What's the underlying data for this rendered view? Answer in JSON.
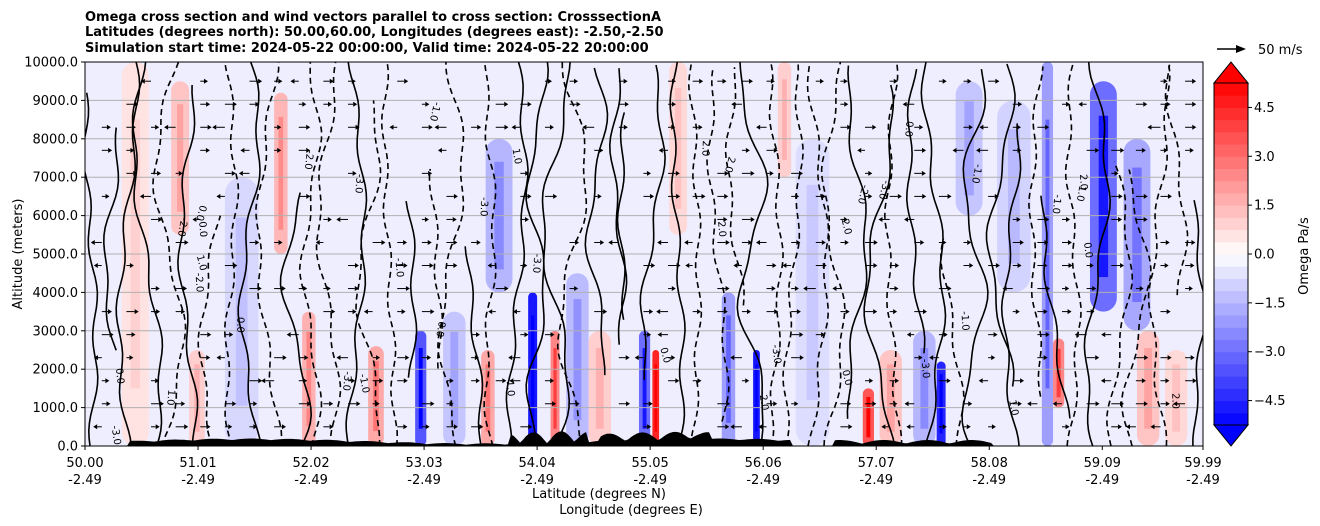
{
  "chart_data": {
    "type": "heatmap",
    "title_lines": [
      "Omega cross section and wind vectors parallel to cross section: CrosssectionA",
      "Latitudes (degrees north): 50.00,60.00, Longitudes (degrees east): -2.50,-2.50",
      "Simulation start time: 2024-05-22 00:00:00, Valid time: 2024-05-22 20:00:00"
    ],
    "ylabel": "Altitude (meters)",
    "xlabel_lines": [
      "Latitude (degrees N)",
      "Longitude (degrees E)"
    ],
    "ylim": [
      0,
      10000
    ],
    "y_ticks": [
      0,
      1000,
      2000,
      3000,
      4000,
      5000,
      6000,
      7000,
      8000,
      9000,
      10000
    ],
    "y_tick_labels": [
      "0.0",
      "1000.0",
      "2000.0",
      "3000.0",
      "4000.0",
      "5000.0",
      "6000.0",
      "7000.0",
      "8000.0",
      "9000.0",
      "10000.0"
    ],
    "x_ticks": [
      {
        "lat": "50.00",
        "lon": "-2.49"
      },
      {
        "lat": "51.01",
        "lon": "-2.49"
      },
      {
        "lat": "52.02",
        "lon": "-2.49"
      },
      {
        "lat": "53.03",
        "lon": "-2.49"
      },
      {
        "lat": "54.04",
        "lon": "-2.49"
      },
      {
        "lat": "55.05",
        "lon": "-2.49"
      },
      {
        "lat": "56.06",
        "lon": "-2.49"
      },
      {
        "lat": "57.07",
        "lon": "-2.49"
      },
      {
        "lat": "58.08",
        "lon": "-2.49"
      },
      {
        "lat": "59.09",
        "lon": "-2.49"
      },
      {
        "lat": "59.99",
        "lon": "-2.49"
      }
    ],
    "colorbar": {
      "label": "Omega Pa/s",
      "range": [
        -5.25,
        5.25
      ],
      "tick_values": [
        4.5,
        3.0,
        1.5,
        0.0,
        -1.5,
        -3.0,
        -4.5
      ],
      "tick_labels": [
        "4.5",
        "3.0",
        "1.5",
        "0.0",
        "−1.5",
        "−3.0",
        "−4.5"
      ],
      "colormap": "bwr"
    },
    "quiver_key": {
      "label": "50 m/s"
    },
    "contour_labels": [
      "0.0",
      "-1.0",
      "1.0",
      "-2.0",
      "2.0",
      "-3.0"
    ],
    "vertical_features": [
      {
        "x": 50.45,
        "v": 0.6,
        "w": 0.12,
        "y0": 0,
        "y1": 10000
      },
      {
        "x": 50.85,
        "v": 1.2,
        "w": 0.08,
        "y0": 5500,
        "y1": 9500
      },
      {
        "x": 51.0,
        "v": 1.0,
        "w": 0.07,
        "y0": 0,
        "y1": 2500
      },
      {
        "x": 51.4,
        "v": -0.8,
        "w": 0.15,
        "y0": 0,
        "y1": 7000
      },
      {
        "x": 51.75,
        "v": 1.5,
        "w": 0.06,
        "y0": 5000,
        "y1": 9200
      },
      {
        "x": 52.0,
        "v": 1.6,
        "w": 0.06,
        "y0": 0,
        "y1": 3500
      },
      {
        "x": 52.6,
        "v": 1.8,
        "w": 0.07,
        "y0": 0,
        "y1": 2600
      },
      {
        "x": 53.0,
        "v": -3.5,
        "w": 0.05,
        "y0": 0,
        "y1": 3000
      },
      {
        "x": 53.3,
        "v": -1.2,
        "w": 0.1,
        "y0": 0,
        "y1": 3500
      },
      {
        "x": 53.6,
        "v": 1.8,
        "w": 0.06,
        "y0": 0,
        "y1": 2500
      },
      {
        "x": 53.7,
        "v": -1.5,
        "w": 0.12,
        "y0": 4000,
        "y1": 8000
      },
      {
        "x": 54.0,
        "v": -4.8,
        "w": 0.04,
        "y0": 0,
        "y1": 4000
      },
      {
        "x": 54.2,
        "v": 2.5,
        "w": 0.04,
        "y0": 0,
        "y1": 3000
      },
      {
        "x": 54.4,
        "v": -1.4,
        "w": 0.1,
        "y0": 0,
        "y1": 4500
      },
      {
        "x": 54.6,
        "v": 1.0,
        "w": 0.1,
        "y0": 0,
        "y1": 3000
      },
      {
        "x": 55.0,
        "v": -3.0,
        "w": 0.05,
        "y0": 0,
        "y1": 3000
      },
      {
        "x": 55.1,
        "v": 4.5,
        "w": 0.03,
        "y0": 0,
        "y1": 2500
      },
      {
        "x": 55.3,
        "v": 0.8,
        "w": 0.08,
        "y0": 5500,
        "y1": 10000
      },
      {
        "x": 55.75,
        "v": -2.0,
        "w": 0.06,
        "y0": 0,
        "y1": 4000
      },
      {
        "x": 56.0,
        "v": -4.8,
        "w": 0.03,
        "y0": 0,
        "y1": 2500
      },
      {
        "x": 56.25,
        "v": 1.0,
        "w": 0.06,
        "y0": 7000,
        "y1": 10000
      },
      {
        "x": 56.5,
        "v": -0.7,
        "w": 0.15,
        "y0": 0,
        "y1": 8000
      },
      {
        "x": 57.0,
        "v": 3.5,
        "w": 0.05,
        "y0": 0,
        "y1": 1500
      },
      {
        "x": 57.2,
        "v": 1.2,
        "w": 0.1,
        "y0": 0,
        "y1": 2500
      },
      {
        "x": 57.5,
        "v": -1.5,
        "w": 0.1,
        "y0": 0,
        "y1": 3000
      },
      {
        "x": 57.65,
        "v": -4.5,
        "w": 0.04,
        "y0": 0,
        "y1": 2200
      },
      {
        "x": 57.9,
        "v": -1.2,
        "w": 0.12,
        "y0": 6000,
        "y1": 9500
      },
      {
        "x": 58.3,
        "v": -0.9,
        "w": 0.15,
        "y0": 4000,
        "y1": 9000
      },
      {
        "x": 58.6,
        "v": -2.0,
        "w": 0.05,
        "y0": 0,
        "y1": 10000
      },
      {
        "x": 58.7,
        "v": 2.5,
        "w": 0.05,
        "y0": 1000,
        "y1": 2800
      },
      {
        "x": 59.1,
        "v": -3.0,
        "w": 0.12,
        "y0": 3500,
        "y1": 9500
      },
      {
        "x": 59.4,
        "v": -1.8,
        "w": 0.12,
        "y0": 3000,
        "y1": 8000
      },
      {
        "x": 59.5,
        "v": 1.2,
        "w": 0.1,
        "y0": 0,
        "y1": 3000
      },
      {
        "x": 59.75,
        "v": 0.8,
        "w": 0.1,
        "y0": 0,
        "y1": 2500
      }
    ]
  }
}
